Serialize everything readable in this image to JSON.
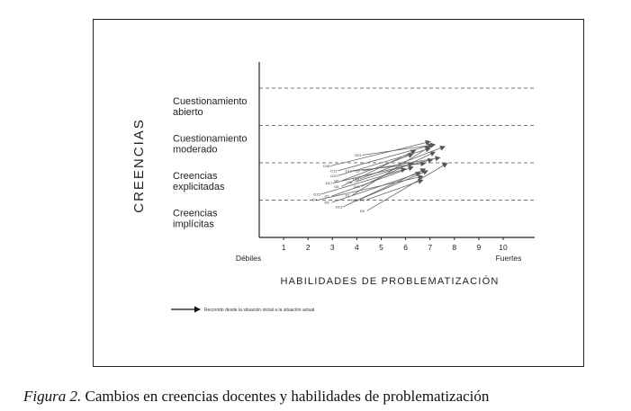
{
  "caption": {
    "label": "Figura 2.",
    "text": "Cambios en creencias docentes y habilidades de problematización"
  },
  "chart_data": {
    "type": "scatter",
    "ylabel": "CREENCIAS",
    "xlabel": "HABILIDADES DE PROBLEMATIZACIÓN",
    "x_ticks": [
      "1",
      "2",
      "3",
      "4",
      "5",
      "6",
      "7",
      "8",
      "9",
      "10"
    ],
    "x_end_labels": {
      "left": "Débiles",
      "right": "Fuertes"
    },
    "xlim": [
      0,
      11
    ],
    "ylim": [
      0,
      4
    ],
    "categories": [
      "Creencias implícitas",
      "Creencias explicitadas",
      "Cuestionamiento moderado",
      "Cuestionamiento abierto"
    ],
    "legend": "Recorrido desde la situación inicial a la situación actual",
    "series": [
      {
        "name": "D16",
        "start": [
          2.7,
          1.53
        ],
        "end": [
          7.0,
          2.18
        ]
      },
      {
        "name": "D12",
        "start": [
          3.0,
          1.4
        ],
        "end": [
          7.1,
          2.1
        ]
      },
      {
        "name": "D21",
        "start": [
          4.0,
          1.82
        ],
        "end": [
          7.2,
          2.1
        ]
      },
      {
        "name": "D14",
        "start": [
          3.6,
          1.4
        ],
        "end": [
          6.8,
          1.6
        ]
      },
      {
        "name": "D3",
        "start": [
          4.0,
          1.4
        ],
        "end": [
          7.4,
          1.75
        ]
      },
      {
        "name": "D10",
        "start": [
          3.0,
          1.27
        ],
        "end": [
          7.0,
          2.0
        ]
      },
      {
        "name": "D18",
        "start": [
          3.9,
          1.18
        ],
        "end": [
          7.6,
          2.05
        ]
      },
      {
        "name": "D17",
        "start": [
          2.8,
          1.07
        ],
        "end": [
          7.1,
          1.7
        ]
      },
      {
        "name": "D6",
        "start": [
          3.15,
          1.13
        ],
        "end": [
          6.3,
          1.85
        ]
      },
      {
        "name": "D8",
        "start": [
          3.7,
          1.1
        ],
        "end": [
          6.3,
          1.6
        ]
      },
      {
        "name": "D5",
        "start": [
          3.15,
          0.98
        ],
        "end": [
          6.4,
          1.95
        ]
      },
      {
        "name": "D11",
        "start": [
          3.95,
          0.98
        ],
        "end": [
          7.2,
          1.9
        ]
      },
      {
        "name": "D15",
        "start": [
          2.3,
          0.77
        ],
        "end": [
          6.0,
          1.45
        ]
      },
      {
        "name": "D7",
        "start": [
          2.75,
          0.72
        ],
        "end": [
          6.3,
          1.5
        ]
      },
      {
        "name": "D1",
        "start": [
          3.6,
          0.75
        ],
        "end": [
          7.0,
          2.05
        ]
      },
      {
        "name": "D4",
        "start": [
          2.25,
          0.63
        ],
        "end": [
          6.7,
          1.25
        ]
      },
      {
        "name": "D9",
        "start": [
          2.75,
          0.55
        ],
        "end": [
          6.6,
          1.35
        ]
      },
      {
        "name": "D19",
        "start": [
          3.85,
          0.62
        ],
        "end": [
          6.9,
          1.4
        ]
      },
      {
        "name": "D2",
        "start": [
          4.2,
          0.63
        ],
        "end": [
          6.7,
          1.15
        ]
      },
      {
        "name": "D13",
        "start": [
          3.2,
          0.43
        ],
        "end": [
          6.8,
          1.45
        ]
      },
      {
        "name": "D4b",
        "label": "D4",
        "start": [
          4.2,
          0.33
        ],
        "end": [
          7.7,
          1.6
        ]
      }
    ]
  }
}
